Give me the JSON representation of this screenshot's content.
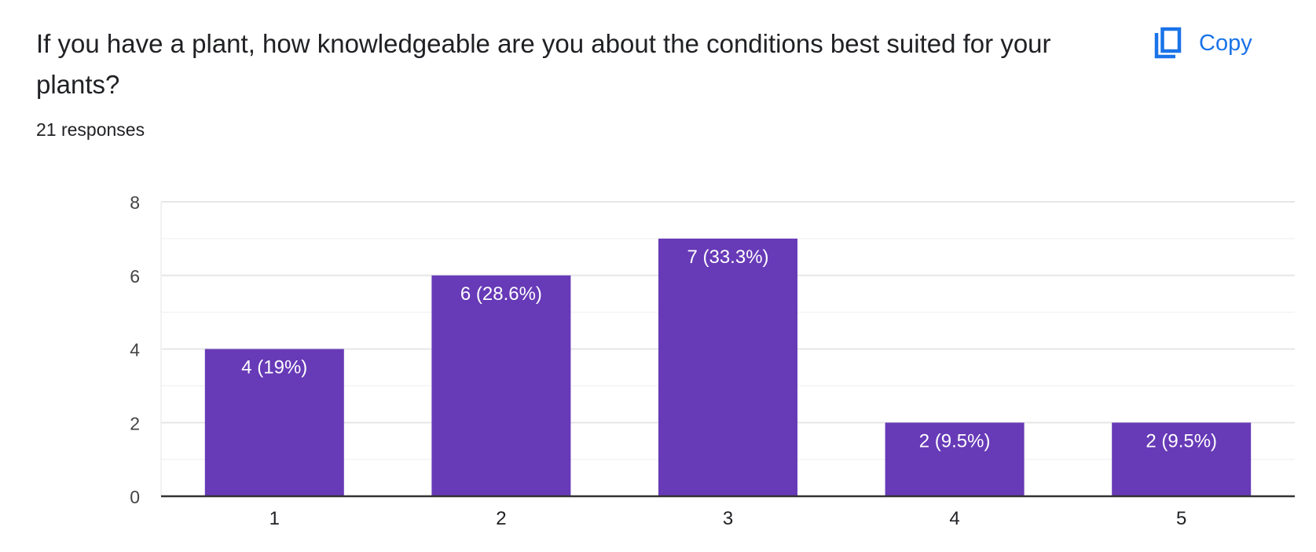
{
  "question": {
    "title": "If you have a plant, how knowledgeable are you about the conditions best suited for your plants?",
    "responses": "21 responses"
  },
  "copy": {
    "label": "Copy",
    "icon": "copy-icon",
    "color": "#1a73e8"
  },
  "chart_data": {
    "type": "bar",
    "categories": [
      "1",
      "2",
      "3",
      "4",
      "5"
    ],
    "values": [
      4,
      6,
      7,
      2,
      2
    ],
    "data_labels": [
      "4 (19%)",
      "6 (28.6%)",
      "7 (33.3%)",
      "2 (9.5%)",
      "2 (9.5%)"
    ],
    "ylim": [
      0,
      8
    ],
    "yticks": [
      0,
      2,
      4,
      6,
      8
    ],
    "minor_gridlines": true,
    "title": "",
    "xlabel": "",
    "ylabel": "",
    "bar_color": "#673ab7",
    "label_color": "#ffffff",
    "grid": true
  }
}
